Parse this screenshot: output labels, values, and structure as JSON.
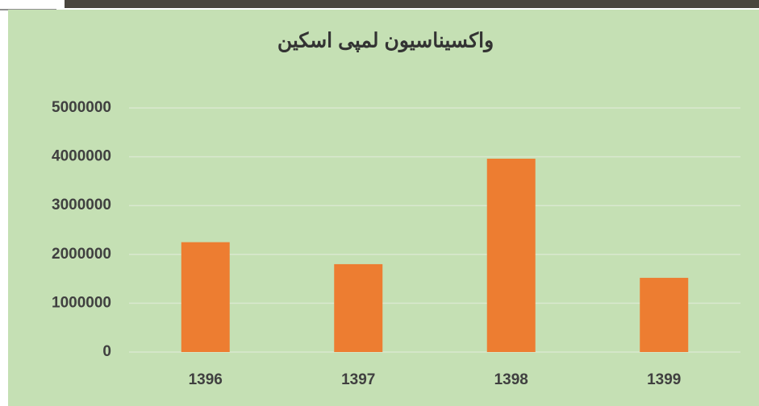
{
  "chart_data": {
    "type": "bar",
    "title": "واکسیناسیون لمپی اسکین",
    "categories": [
      "1396",
      "1397",
      "1398",
      "1399"
    ],
    "values": [
      2250000,
      1800000,
      3960000,
      1520000
    ],
    "color": "#ed7d31",
    "ylim": [
      0,
      5000000
    ],
    "yticks": [
      0,
      1000000,
      2000000,
      3000000,
      4000000,
      5000000
    ],
    "grid": true
  }
}
